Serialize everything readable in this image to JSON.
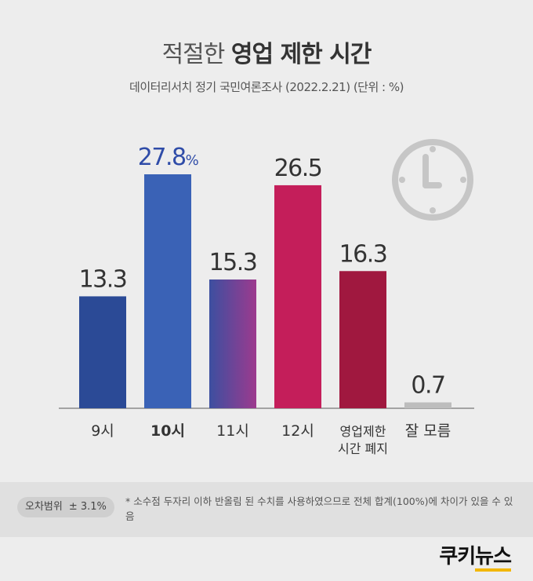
{
  "header": {
    "title_light": "적절한",
    "title_bold": "영업 제한 시간",
    "subtitle": "데이터리서치 정기 국민여론조사 (2022.2.21)  (단위 : %)"
  },
  "chart_data": {
    "type": "bar",
    "categories": [
      [
        "9시"
      ],
      [
        "10시"
      ],
      [
        "11시"
      ],
      [
        "12시"
      ],
      [
        "영업제한",
        "시간 폐지"
      ],
      [
        "잘 모름"
      ]
    ],
    "values": [
      13.3,
      27.8,
      15.3,
      26.5,
      16.3,
      0.7
    ],
    "value_labels": [
      "13.3",
      "27.8",
      "15.3",
      "26.5",
      "16.3",
      "0.7"
    ],
    "highlight_index": 1,
    "highlight_suffix": "%",
    "ylim": [
      0,
      27.8
    ],
    "colors": {
      "bars": [
        [
          "#2b4a96",
          "#2b4a96"
        ],
        [
          "#3a62b6",
          "#3a62b6"
        ],
        [
          "#3c4fa0",
          "#9d3a8e"
        ],
        [
          "#c41e5a",
          "#c41e5a"
        ],
        [
          "#a0183f",
          "#a0183f"
        ],
        [
          "#bdbdbd",
          "#bdbdbd"
        ]
      ],
      "highlight_text": "#2f4ca8",
      "clock": "#c6c6c6"
    },
    "decoration": "clock-icon"
  },
  "footer": {
    "moe_label": "오차범위",
    "moe_value": "± 3.1%",
    "note": "* 소수점 두자리 이하 반올림 된 수치를 사용하였으므로 전체 합계(100%)에 차이가 있을 수 있음",
    "logo_a": "쿠키",
    "logo_b": "뉴스"
  }
}
